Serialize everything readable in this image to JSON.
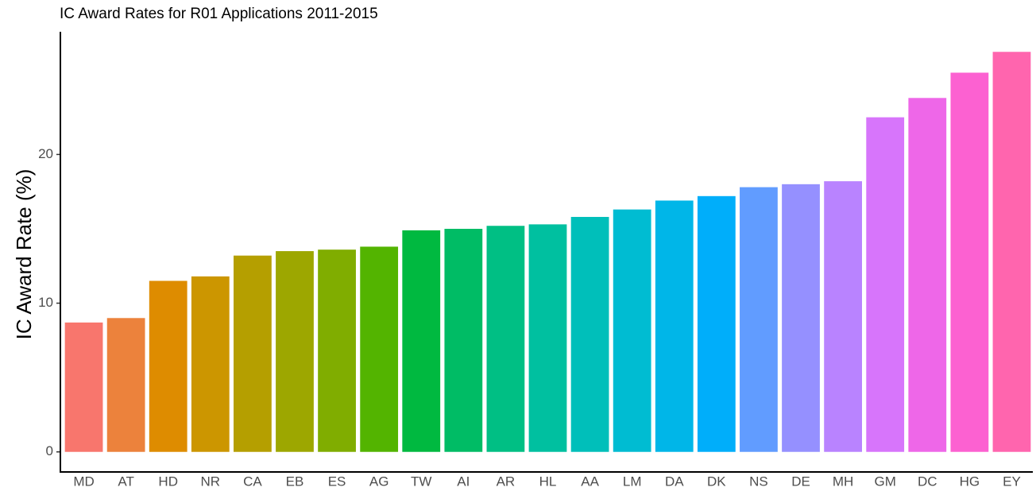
{
  "chart_data": {
    "type": "bar",
    "title": "IC Award Rates for R01 Applications 2011-2015",
    "y_label": "IC Award Rate (%)",
    "categories": [
      "MD",
      "AT",
      "HD",
      "NR",
      "CA",
      "EB",
      "ES",
      "AG",
      "TW",
      "AI",
      "AR",
      "HL",
      "AA",
      "LM",
      "DA",
      "DK",
      "NS",
      "DE",
      "MH",
      "GM",
      "DC",
      "HG",
      "EY"
    ],
    "values": [
      8.7,
      9.0,
      11.5,
      11.8,
      13.2,
      13.5,
      13.6,
      13.8,
      14.9,
      15.0,
      15.2,
      15.3,
      15.8,
      16.3,
      16.9,
      17.2,
      17.8,
      18.0,
      18.2,
      22.5,
      23.8,
      25.5,
      26.9
    ],
    "colors": [
      "#F8766D",
      "#EC823C",
      "#DE8C00",
      "#CC9600",
      "#B59F00",
      "#9DA700",
      "#80AD00",
      "#53B400",
      "#00B940",
      "#00BC65",
      "#00BF84",
      "#00C0A0",
      "#00BFBA",
      "#00BCD2",
      "#00B6E8",
      "#00AEFA",
      "#619CFF",
      "#9590FF",
      "#B983FF",
      "#D775FB",
      "#EE67E8",
      "#FC61D1",
      "#FF65AE"
    ],
    "ylim": [
      -1.35,
      28.25
    ],
    "yticks": [
      0,
      10,
      20
    ],
    "grid": false
  }
}
